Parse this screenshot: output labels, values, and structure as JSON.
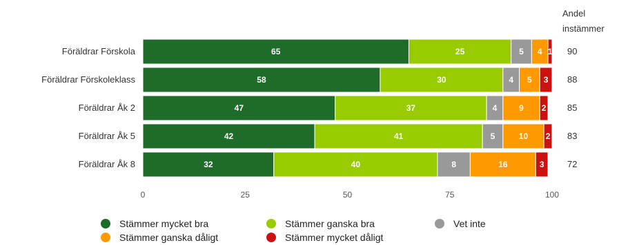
{
  "chart_data": {
    "type": "bar",
    "orientation": "horizontal",
    "stacked": true,
    "categories": [
      "Föräldrar Förskola",
      "Föräldrar Förskoleklass",
      "Föräldrar Åk 2",
      "Föräldrar Åk 5",
      "Föräldrar Åk 8"
    ],
    "series": [
      {
        "name": "Stämmer mycket bra",
        "color": "#1e6b2a",
        "values": [
          65,
          58,
          47,
          42,
          32
        ]
      },
      {
        "name": "Stämmer ganska bra",
        "color": "#99cc00",
        "values": [
          25,
          30,
          37,
          41,
          40
        ]
      },
      {
        "name": "Vet inte",
        "color": "#999999",
        "values": [
          5,
          4,
          4,
          5,
          8
        ]
      },
      {
        "name": "Stämmer ganska dåligt",
        "color": "#ff9900",
        "values": [
          4,
          5,
          9,
          10,
          16
        ]
      },
      {
        "name": "Stämmer mycket dåligt",
        "color": "#cc1111",
        "values": [
          1,
          3,
          2,
          2,
          3
        ]
      }
    ],
    "xlim": [
      0,
      100
    ],
    "xticks": [
      0,
      25,
      50,
      75,
      100
    ],
    "right_header": [
      "Andel",
      "instämmer"
    ],
    "right_values": [
      90,
      88,
      85,
      83,
      72
    ],
    "legend_position": "bottom",
    "grid": false
  }
}
